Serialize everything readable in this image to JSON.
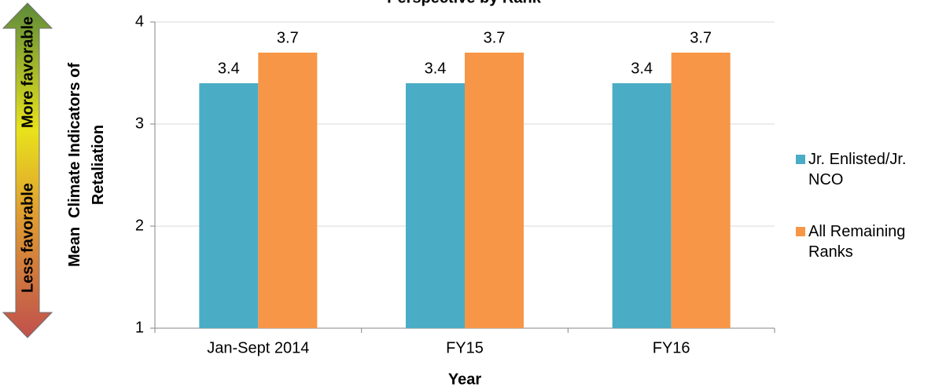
{
  "chart_data": {
    "type": "bar",
    "title": "Perspective by Rank",
    "xlabel": "Year",
    "ylabel": "Mean  Climate Indicators of Retaliation",
    "annotations": [
      "More favorable",
      "Less favorable"
    ],
    "categories": [
      "Jan-Sept 2014",
      "FY15",
      "FY16"
    ],
    "series": [
      {
        "name": "Jr. Enlisted/Jr. NCO",
        "color": "#4bacc6",
        "values": [
          3.4,
          3.4,
          3.4
        ]
      },
      {
        "name": "All Remaining Ranks",
        "color": "#f79646",
        "values": [
          3.7,
          3.7,
          3.7
        ]
      }
    ],
    "ylim": [
      1,
      4
    ],
    "yticks": [
      1,
      2,
      3,
      4
    ],
    "grid": true,
    "legend": "right"
  }
}
